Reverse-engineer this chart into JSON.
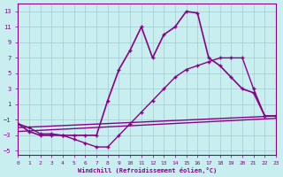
{
  "background_color": "#c8eef0",
  "grid_color": "#a0ccd0",
  "line_color": "#880088",
  "xlim": [
    0,
    23
  ],
  "ylim": [
    -5.5,
    14
  ],
  "xticks": [
    0,
    1,
    2,
    3,
    4,
    5,
    6,
    7,
    8,
    9,
    10,
    11,
    12,
    13,
    14,
    15,
    16,
    17,
    18,
    19,
    20,
    21,
    22,
    23
  ],
  "yticks": [
    -5,
    -3,
    -1,
    1,
    3,
    5,
    7,
    9,
    11,
    13
  ],
  "xlabel": "Windchill (Refroidissement éolien,°C)",
  "curves": [
    {
      "x": [
        0,
        1,
        2,
        3,
        4,
        5,
        6,
        7,
        8,
        9,
        10,
        11,
        12,
        13,
        14,
        15,
        16,
        17,
        18,
        19,
        20,
        21,
        22,
        23
      ],
      "y": [
        -1.5,
        -2.5,
        -3.0,
        -3.0,
        -3.0,
        -3.0,
        -3.0,
        -3.0,
        1.5,
        5.5,
        8.0,
        11.0,
        7.0,
        10.0,
        11.0,
        13.0,
        12.8,
        7.0,
        6.0,
        4.5,
        3.0,
        2.5,
        -0.5,
        -0.5
      ],
      "marker": true,
      "linewidth": 1.2
    },
    {
      "x": [
        0,
        1,
        2,
        3,
        4,
        5,
        6,
        7,
        8,
        9,
        10,
        11,
        12,
        13,
        14,
        15,
        16,
        17,
        18,
        19,
        20,
        21,
        22,
        23
      ],
      "y": [
        -1.5,
        -2.0,
        -2.8,
        -2.8,
        -3.0,
        -3.5,
        -4.0,
        -4.5,
        -4.5,
        -3.0,
        -1.5,
        0.0,
        1.5,
        3.0,
        4.5,
        5.5,
        6.0,
        6.5,
        7.0,
        7.0,
        7.0,
        3.0,
        -0.5,
        -0.5
      ],
      "marker": true,
      "linewidth": 1.0
    },
    {
      "x": [
        0,
        23
      ],
      "y": [
        -2.0,
        -0.5
      ],
      "marker": false,
      "linewidth": 1.0
    },
    {
      "x": [
        0,
        23
      ],
      "y": [
        -2.5,
        -0.8
      ],
      "marker": false,
      "linewidth": 1.0
    }
  ]
}
